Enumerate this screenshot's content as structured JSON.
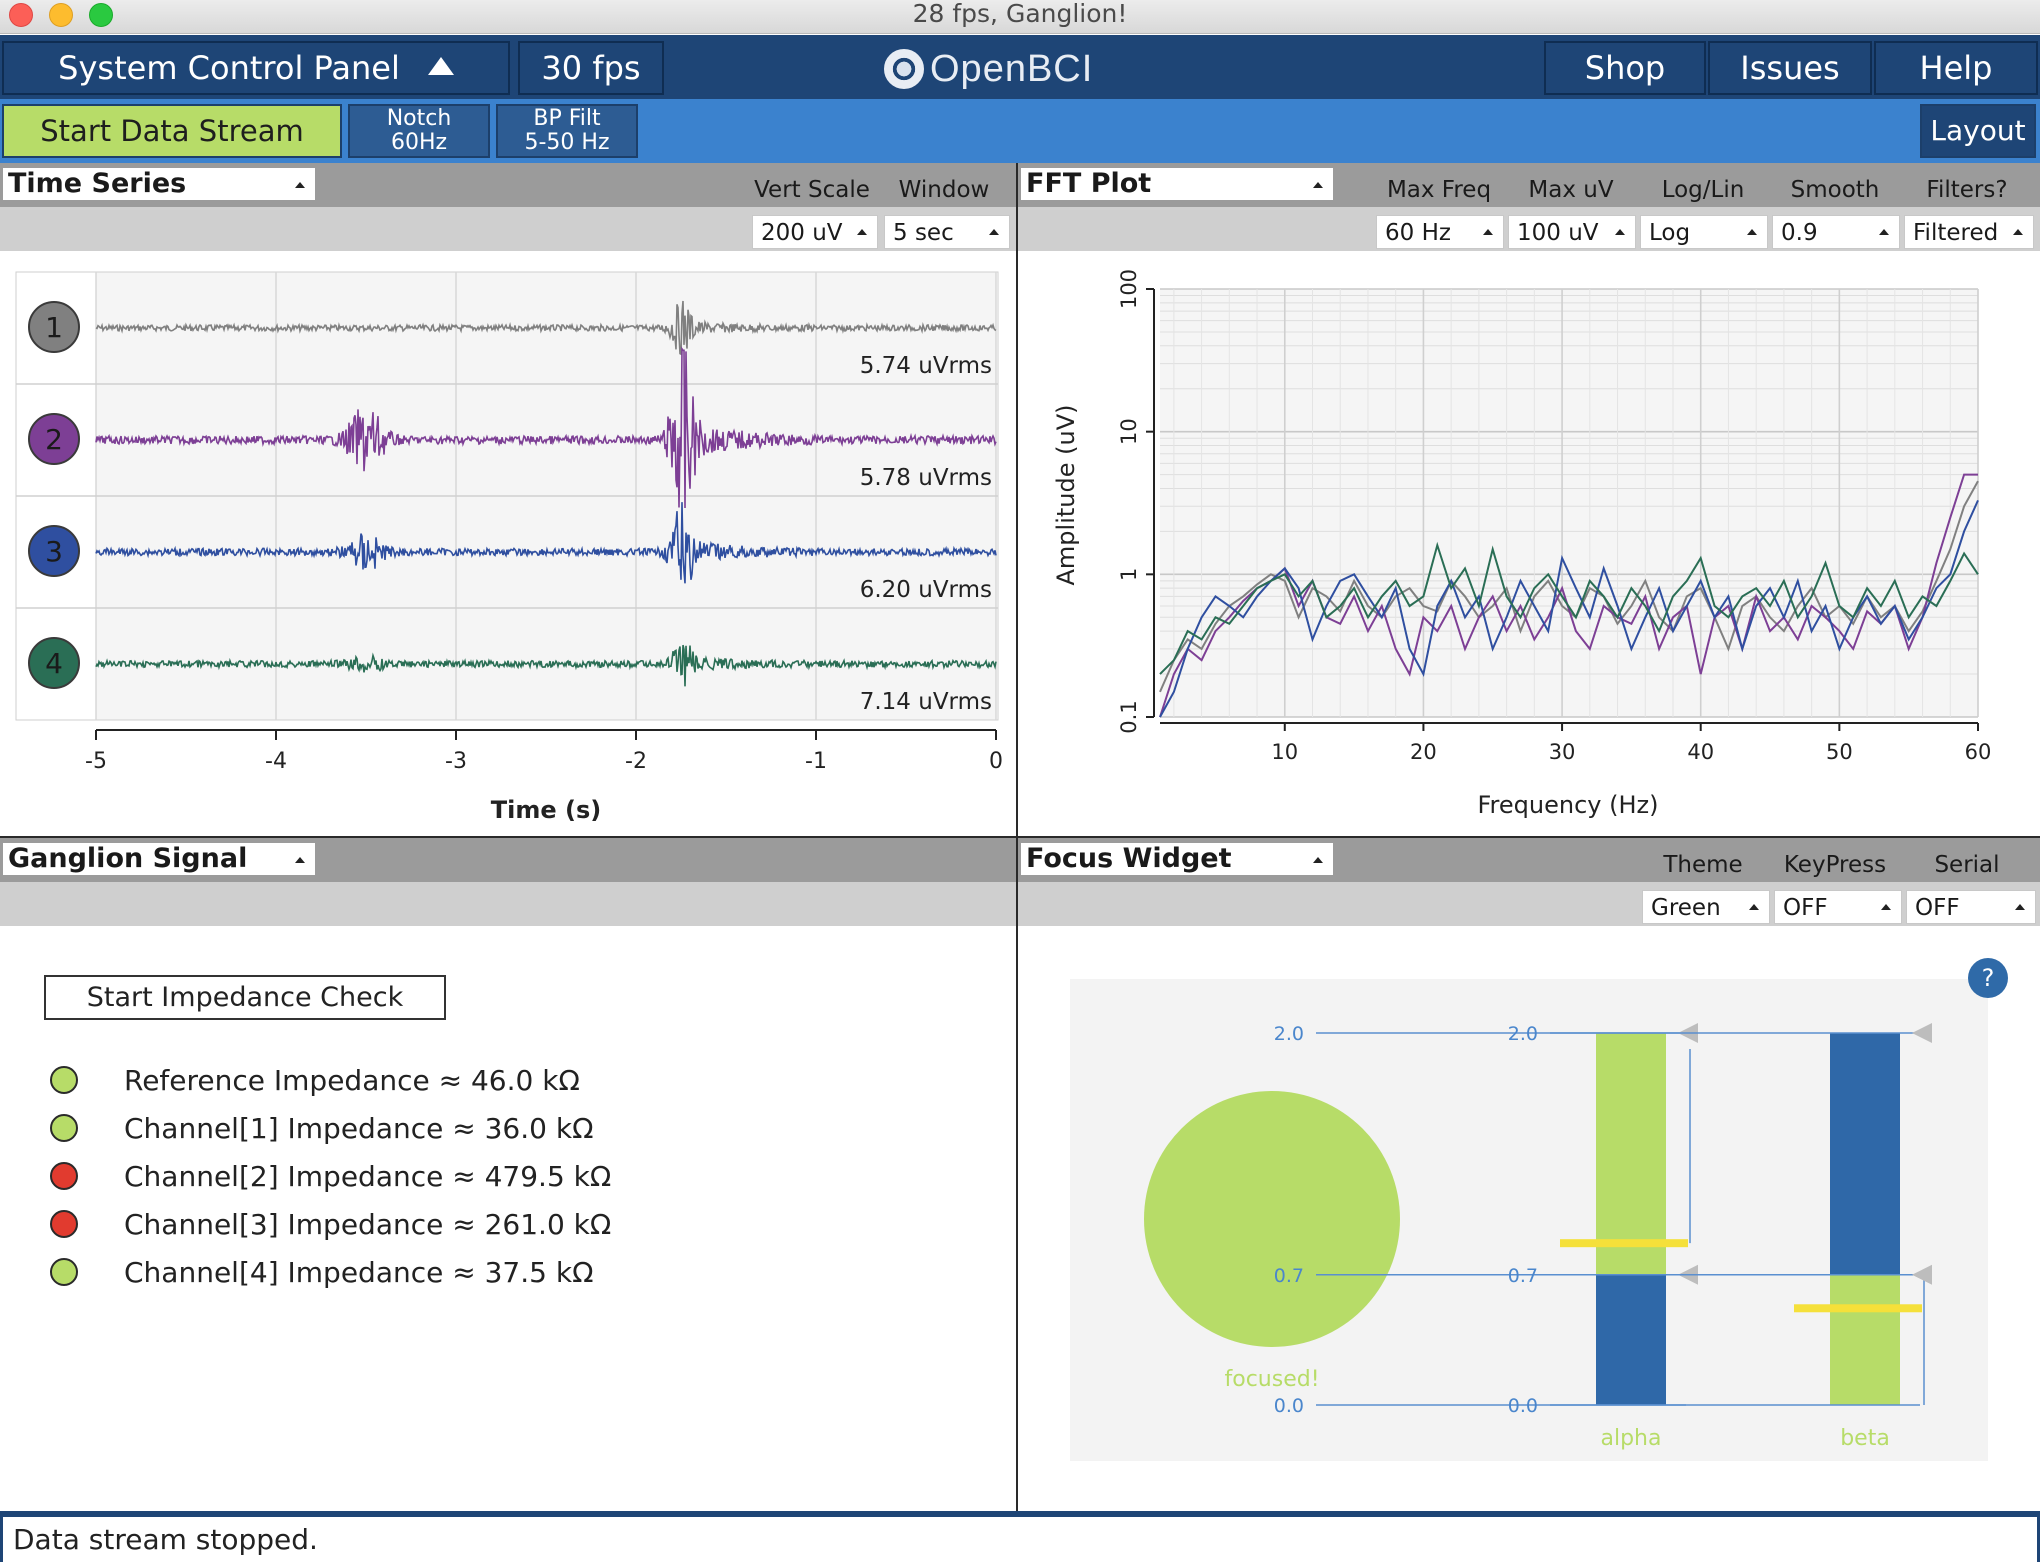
{
  "window": {
    "title": "28 fps, Ganglion!"
  },
  "topnav": {
    "control_panel_label": "System Control Panel",
    "fps_label": "30 fps",
    "logo_text": "OpenBCI",
    "shop_label": "Shop",
    "issues_label": "Issues",
    "help_label": "Help"
  },
  "toolbar": {
    "start_label": "Start Data Stream",
    "notch_line1": "Notch",
    "notch_line2": "60Hz",
    "bp_line1": "BP Filt",
    "bp_line2": "5-50 Hz",
    "layout_label": "Layout"
  },
  "time_series": {
    "title": "Time Series",
    "options": [
      {
        "label": "Vert Scale",
        "value": "200 uV"
      },
      {
        "label": "Window",
        "value": "5 sec"
      }
    ],
    "channels": [
      {
        "number": "1",
        "rms": "5.74 uVrms",
        "color": "#808080"
      },
      {
        "number": "2",
        "rms": "5.78 uVrms",
        "color": "#7d3f95"
      },
      {
        "number": "3",
        "rms": "6.20 uVrms",
        "color": "#2f4fa0"
      },
      {
        "number": "4",
        "rms": "7.14 uVrms",
        "color": "#2a6e55"
      }
    ],
    "xticks": [
      "-5",
      "-4",
      "-3",
      "-2",
      "-1",
      "0"
    ],
    "xlabel": "Time (s)"
  },
  "fft": {
    "title": "FFT Plot",
    "options": [
      {
        "label": "Max Freq",
        "value": "60 Hz"
      },
      {
        "label": "Max uV",
        "value": "100 uV"
      },
      {
        "label": "Log/Lin",
        "value": "Log"
      },
      {
        "label": "Smooth",
        "value": "0.9"
      },
      {
        "label": "Filters?",
        "value": "Filtered"
      }
    ]
  },
  "chart_data": {
    "type": "line",
    "xlabel": "Frequency (Hz)",
    "ylabel": "Amplitude (uV)",
    "xlim": [
      1,
      60
    ],
    "ylim": [
      0.1,
      100
    ],
    "yscale": "log",
    "xticks": [
      "10",
      "20",
      "30",
      "40",
      "50",
      "60"
    ],
    "yticks": [
      "0.1",
      "1",
      "10",
      "100"
    ],
    "grid": true,
    "x": [
      1,
      2,
      3,
      4,
      5,
      6,
      7,
      8,
      9,
      10,
      11,
      12,
      13,
      14,
      15,
      16,
      17,
      18,
      19,
      20,
      21,
      22,
      23,
      24,
      25,
      26,
      27,
      28,
      29,
      30,
      31,
      32,
      33,
      34,
      35,
      36,
      37,
      38,
      39,
      40,
      41,
      42,
      43,
      44,
      45,
      46,
      47,
      48,
      49,
      50,
      51,
      52,
      53,
      54,
      55,
      56,
      57,
      58,
      59,
      60
    ],
    "series": [
      {
        "color": "#808080",
        "values": [
          0.15,
          0.25,
          0.35,
          0.3,
          0.45,
          0.6,
          0.7,
          0.85,
          1.0,
          0.9,
          0.5,
          0.8,
          0.7,
          0.55,
          0.9,
          0.6,
          0.5,
          0.7,
          0.8,
          0.6,
          0.55,
          0.9,
          0.7,
          0.5,
          0.6,
          0.8,
          0.4,
          0.7,
          0.9,
          0.6,
          0.5,
          0.8,
          0.7,
          0.45,
          0.6,
          0.9,
          0.5,
          0.4,
          0.7,
          0.8,
          0.5,
          0.3,
          0.6,
          0.7,
          0.5,
          0.4,
          0.6,
          0.8,
          0.5,
          0.6,
          0.45,
          0.7,
          0.5,
          0.6,
          0.4,
          0.55,
          0.9,
          1.5,
          3.0,
          4.5
        ]
      },
      {
        "color": "#7d3f95",
        "values": [
          0.1,
          0.2,
          0.3,
          0.25,
          0.4,
          0.5,
          0.65,
          0.8,
          0.9,
          1.1,
          0.6,
          0.9,
          0.5,
          0.45,
          0.7,
          0.4,
          0.6,
          0.3,
          0.2,
          0.5,
          0.4,
          0.6,
          0.3,
          0.5,
          0.7,
          0.4,
          0.6,
          0.35,
          0.5,
          0.8,
          0.4,
          0.3,
          0.6,
          0.5,
          0.45,
          0.7,
          0.3,
          0.5,
          0.6,
          0.2,
          0.5,
          0.6,
          0.3,
          0.7,
          0.4,
          0.5,
          0.35,
          0.6,
          0.5,
          0.4,
          0.3,
          0.55,
          0.45,
          0.6,
          0.3,
          0.5,
          1.2,
          2.5,
          5.0,
          5.0
        ]
      },
      {
        "color": "#2f4fa0",
        "values": [
          0.1,
          0.15,
          0.3,
          0.5,
          0.7,
          0.6,
          0.5,
          0.7,
          0.9,
          1.1,
          0.8,
          0.35,
          0.6,
          0.9,
          1.0,
          0.7,
          0.5,
          0.8,
          0.3,
          0.2,
          0.6,
          0.9,
          0.5,
          0.7,
          0.3,
          0.5,
          0.9,
          0.6,
          0.4,
          1.3,
          0.8,
          0.5,
          1.1,
          0.6,
          0.3,
          0.5,
          0.8,
          0.4,
          0.6,
          0.9,
          0.5,
          0.7,
          0.3,
          0.6,
          0.8,
          0.5,
          0.9,
          0.4,
          0.6,
          0.3,
          0.5,
          0.7,
          0.45,
          0.6,
          0.35,
          0.5,
          0.8,
          1.0,
          2.0,
          3.3
        ]
      },
      {
        "color": "#2a6e55",
        "values": [
          0.2,
          0.25,
          0.4,
          0.35,
          0.5,
          0.45,
          0.6,
          0.8,
          0.9,
          1.0,
          0.7,
          0.9,
          0.5,
          0.6,
          0.8,
          0.5,
          0.7,
          0.9,
          0.6,
          0.7,
          1.6,
          0.8,
          1.1,
          0.6,
          1.5,
          0.7,
          0.5,
          0.8,
          1.0,
          0.7,
          0.5,
          0.9,
          0.7,
          0.5,
          0.8,
          0.6,
          0.4,
          0.7,
          0.9,
          1.3,
          0.6,
          0.5,
          0.7,
          0.8,
          0.6,
          0.9,
          0.5,
          0.7,
          1.2,
          0.6,
          0.5,
          0.8,
          0.6,
          0.9,
          0.5,
          0.7,
          0.6,
          0.9,
          1.4,
          1.0
        ]
      }
    ]
  },
  "ganglion": {
    "title": "Ganglion Signal",
    "impedance_button": "Start Impedance Check",
    "rows": [
      {
        "text": "Reference Impedance ≈ 46.0 kΩ",
        "status_color": "#b7dc68"
      },
      {
        "text": "Channel[1] Impedance ≈ 36.0 kΩ",
        "status_color": "#b7dc68"
      },
      {
        "text": "Channel[2] Impedance ≈ 479.5 kΩ",
        "status_color": "#e13b2f"
      },
      {
        "text": "Channel[3] Impedance ≈ 261.0 kΩ",
        "status_color": "#e13b2f"
      },
      {
        "text": "Channel[4] Impedance ≈ 37.5 kΩ",
        "status_color": "#b7dc68"
      }
    ]
  },
  "focus": {
    "title": "Focus Widget",
    "options": [
      {
        "label": "Theme",
        "value": "Green"
      },
      {
        "label": "KeyPress",
        "value": "OFF"
      },
      {
        "label": "Serial",
        "value": "OFF"
      }
    ],
    "help_label": "?",
    "status_text": "focused!",
    "bars": [
      {
        "name": "alpha",
        "ticks": [
          "2.0",
          "0.7",
          "0.0"
        ],
        "value": 0.87,
        "threshold": 0.7,
        "max": 2.0
      },
      {
        "name": "beta",
        "ticks": [
          "2.0",
          "0.7",
          "0.0"
        ],
        "value": 0.52,
        "threshold": 0.7,
        "max": 2.0
      }
    ],
    "colors": {
      "green": "#b7dc68",
      "blue": "#2f68a8",
      "marker": "#f5e03a"
    }
  },
  "status": {
    "message": "Data stream stopped."
  }
}
